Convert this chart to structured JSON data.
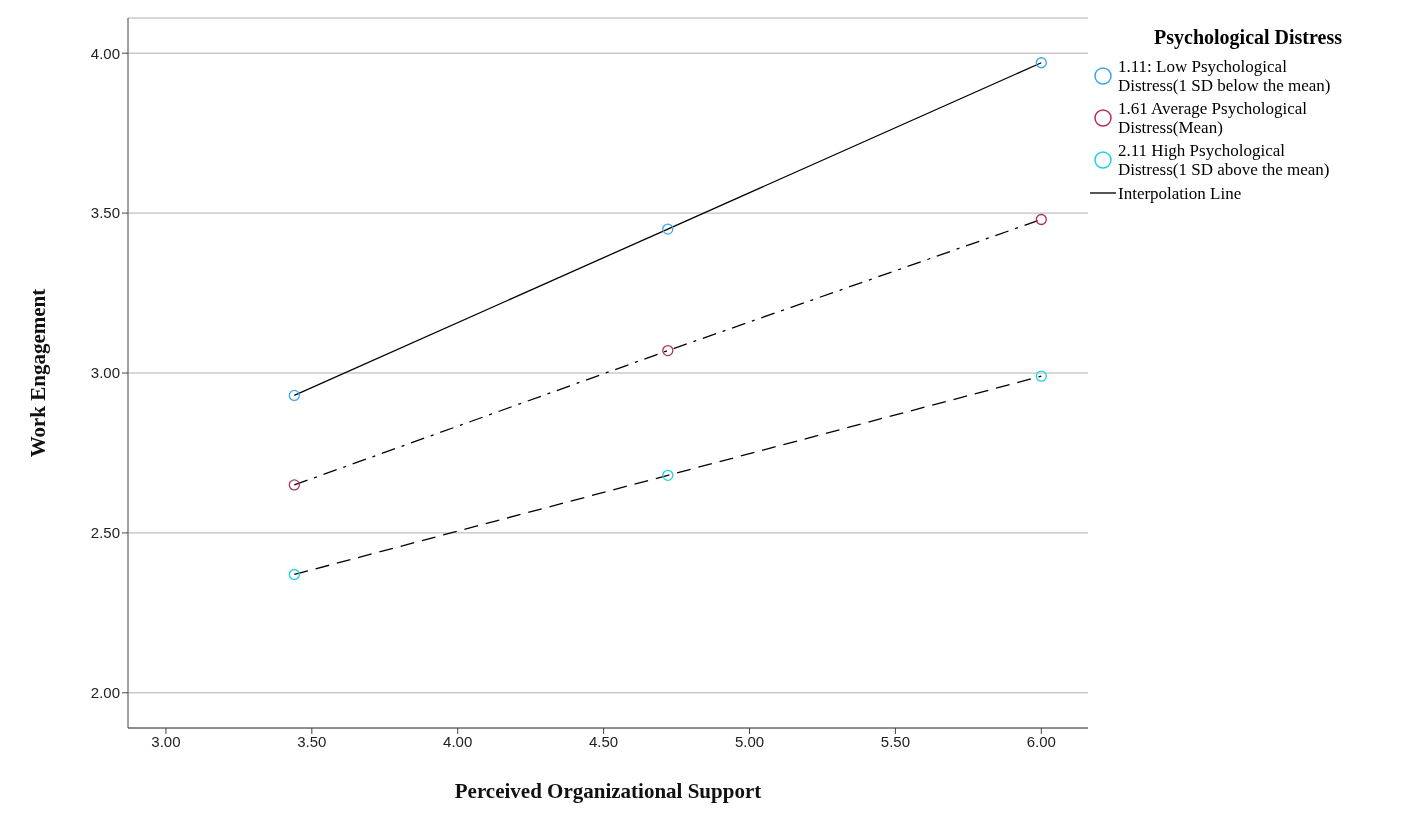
{
  "chart_data": {
    "type": "line",
    "xlabel": "Perceived Organizational Support",
    "ylabel": "Work Engagement",
    "legend_title": "Psychological Distress",
    "legend": "right",
    "grid": "y",
    "marker": "circle",
    "xlim": [
      2.87,
      6.16
    ],
    "xticks": [
      {
        "value": 3,
        "label": "3.00"
      },
      {
        "value": 3.5,
        "label": "3.50"
      },
      {
        "value": 4,
        "label": "4.00"
      },
      {
        "value": 4.5,
        "label": "4.50"
      },
      {
        "value": 5,
        "label": "5.00"
      },
      {
        "value": 5.5,
        "label": "5.50"
      },
      {
        "value": 6,
        "label": "6.00"
      }
    ],
    "ylim": [
      1.89,
      4.11
    ],
    "yticks": [
      {
        "value": 2,
        "label": "2.00"
      },
      {
        "value": 2.5,
        "label": "2.50"
      },
      {
        "value": 3,
        "label": "3.00"
      },
      {
        "value": 3.5,
        "label": "3.50"
      },
      {
        "value": 4,
        "label": "4.00"
      }
    ],
    "series": [
      {
        "color": "#000000",
        "line_style": "solid",
        "marker": "none",
        "x": [
          3.44,
          4.72,
          6.0
        ],
        "values": [
          2.93,
          3.45,
          3.97
        ]
      },
      {
        "color": "#000000",
        "line_style": "dashdot",
        "marker": "none",
        "x": [
          3.44,
          4.72,
          6.0
        ],
        "values": [
          2.65,
          3.07,
          3.48
        ]
      },
      {
        "color": "#000000",
        "line_style": "dashed",
        "marker": "none",
        "x": [
          3.44,
          4.72,
          6.0
        ],
        "values": [
          2.37,
          2.68,
          2.99
        ]
      },
      {
        "name": "1.11: Low Psychological Distress(1 SD below the mean)",
        "type": "scatter",
        "color": "#3fa3f0",
        "x": [
          3.44,
          4.72,
          6.0
        ],
        "values": [
          2.93,
          3.45,
          3.97
        ]
      },
      {
        "name": "1.61 Average Psychological Distress(Mean)",
        "type": "scatter",
        "color": "#b03060",
        "x": [
          3.44,
          4.72,
          6.0
        ],
        "values": [
          2.65,
          3.07,
          3.48
        ]
      },
      {
        "name": "2.11 High Psychological Distress(1 SD above the mean)",
        "type": "scatter",
        "color": "#20d0e0",
        "x": [
          3.44,
          4.72,
          6.0
        ],
        "values": [
          2.37,
          2.68,
          2.99
        ]
      },
      {
        "name": "Interpolation Line",
        "type": "line",
        "color": "#555555",
        "line_style": "solid"
      }
    ]
  }
}
